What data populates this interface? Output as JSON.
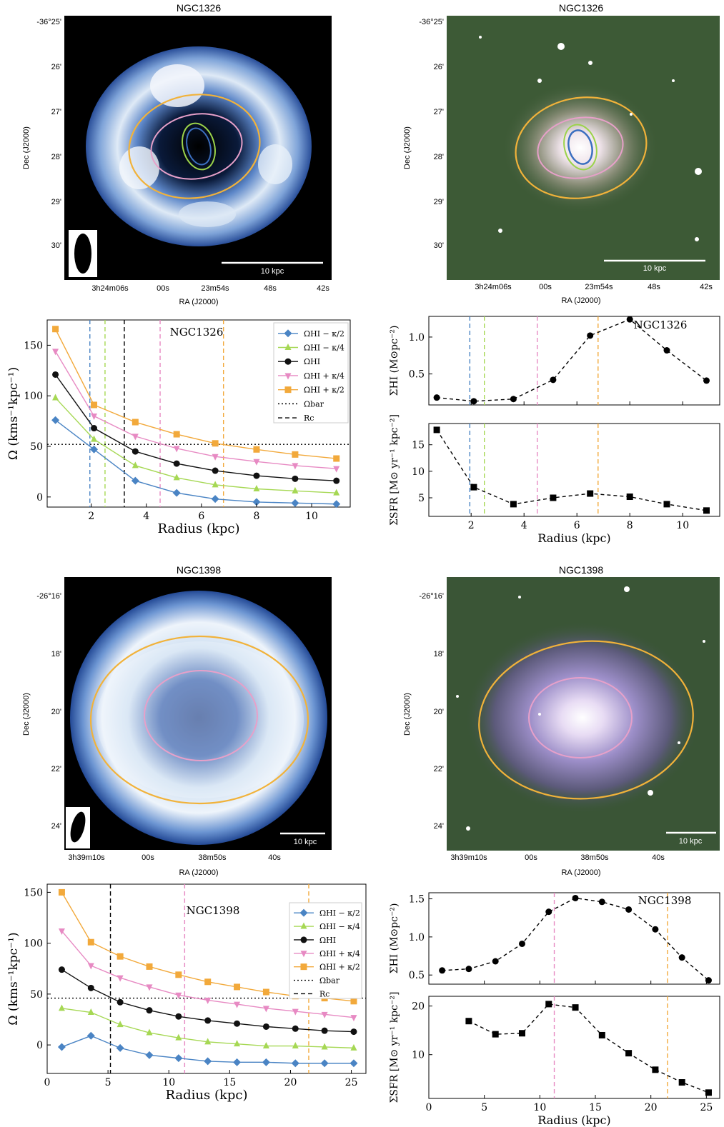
{
  "colors": {
    "kappa_minus_half": "#4a84c4",
    "kappa_minus_quarter": "#a6d854",
    "hi": "#111111",
    "kappa_plus_quarter": "#e78ac3",
    "kappa_plus_half": "#f2a93b",
    "ellipse_blue": "#3b6fc0",
    "ellipse_green": "#9bd34a",
    "ellipse_pink": "#e7a0c9",
    "ellipse_orange": "#f1b23a"
  },
  "images": [
    {
      "title": "NGC1326",
      "kind": "hi-map",
      "dec_labels": [
        "-36°25'",
        "26'",
        "27'",
        "28'",
        "29'",
        "30'"
      ],
      "ra_labels": [
        "3h24m06s",
        "00s",
        "23m54s",
        "48s",
        "42s"
      ],
      "xlabel": "RA (J2000)",
      "ylabel": "Dec (J2000)",
      "scalebar": "10 kpc"
    },
    {
      "title": "NGC1326",
      "kind": "optical",
      "dec_labels": [
        "-36°25'",
        "26'",
        "27'",
        "28'",
        "29'",
        "30'"
      ],
      "ra_labels": [
        "3h24m06s",
        "00s",
        "23m54s",
        "48s",
        "42s"
      ],
      "xlabel": "RA (J2000)",
      "ylabel": "Dec (J2000)",
      "scalebar": "10 kpc"
    },
    {
      "title": "NGC1398",
      "kind": "hi-map",
      "dec_labels": [
        "-26°16'",
        "18'",
        "20'",
        "22'",
        "24'"
      ],
      "ra_labels": [
        "3h39m10s",
        "00s",
        "38m50s",
        "40s"
      ],
      "xlabel": "RA (J2000)",
      "ylabel": "Dec (J2000)",
      "scalebar": "10 kpc"
    },
    {
      "title": "NGC1398",
      "kind": "optical",
      "dec_labels": [
        "-26°16'",
        "18'",
        "20'",
        "22'",
        "24'"
      ],
      "ra_labels": [
        "3h39m10s",
        "00s",
        "38m50s",
        "40s"
      ],
      "xlabel": "RA (J2000)",
      "ylabel": "Dec (J2000)",
      "scalebar": "10 kpc"
    }
  ],
  "chart_data": [
    {
      "type": "line",
      "galaxy": "NGC1326",
      "label": "NGC1326",
      "xlabel": "Radius (kpc)",
      "ylabel": "Ω (kms⁻¹kpc⁻¹)",
      "xlim": [
        0.4,
        11.4
      ],
      "ylim": [
        -10,
        175
      ],
      "xticks": [
        2,
        4,
        6,
        8,
        10
      ],
      "yticks": [
        0,
        50,
        100,
        150
      ],
      "x": [
        0.7,
        2.1,
        3.6,
        5.1,
        6.5,
        8.0,
        9.4,
        10.9
      ],
      "series": [
        {
          "name": "ΩHI − κ/2",
          "values": [
            76,
            47,
            16,
            4,
            -2,
            -5,
            -6,
            -7
          ]
        },
        {
          "name": "ΩHI − κ/4",
          "values": [
            98,
            57,
            31,
            19,
            12,
            8,
            6,
            4
          ]
        },
        {
          "name": "ΩHI",
          "values": [
            121,
            68,
            45,
            33,
            26,
            21,
            18,
            16
          ]
        },
        {
          "name": "ΩHI + κ/4",
          "values": [
            144,
            80,
            60,
            48,
            40,
            35,
            31,
            28
          ]
        },
        {
          "name": "ΩHI + κ/2",
          "values": [
            166,
            91,
            74,
            62,
            53,
            47,
            42,
            38
          ]
        }
      ],
      "omega_bar": 52,
      "vlines": [
        1.95,
        2.5,
        4.5,
        6.8
      ],
      "rc": 3.2,
      "legend_extra": [
        "Ωbar",
        "Rc"
      ],
      "legend": "top-right"
    },
    {
      "type": "line",
      "galaxy": "NGC1326",
      "label": "NGC1326",
      "ylabel": "ΣHI (M⊙pc⁻²)",
      "xlim": [
        0.4,
        11.4
      ],
      "ylim": [
        0.08,
        1.28
      ],
      "yticks": [
        0.5,
        1.0
      ],
      "x": [
        0.7,
        2.1,
        3.6,
        5.1,
        6.5,
        8.0,
        9.4,
        10.9
      ],
      "values": [
        0.18,
        0.13,
        0.16,
        0.42,
        1.02,
        1.24,
        0.82,
        0.41
      ],
      "vlines": [
        1.95,
        2.5,
        4.5,
        6.8
      ]
    },
    {
      "type": "line",
      "galaxy": "NGC1326",
      "xlabel": "Radius (kpc)",
      "ylabel": "ΣSFR [M⊙ yr⁻¹ kpc⁻²]",
      "xlim": [
        0.4,
        11.4
      ],
      "ylim": [
        1.5,
        19
      ],
      "xticks": [
        2,
        4,
        6,
        8,
        10
      ],
      "yticks": [
        5,
        10,
        15
      ],
      "x": [
        0.7,
        2.1,
        3.6,
        5.1,
        6.5,
        8.0,
        9.4,
        10.9
      ],
      "values": [
        17.8,
        7.0,
        3.8,
        5.0,
        5.8,
        5.2,
        3.8,
        2.6
      ],
      "vlines": [
        1.95,
        2.5,
        4.5,
        6.8
      ]
    },
    {
      "type": "line",
      "galaxy": "NGC1398",
      "label": "NGC1398",
      "xlabel": "Radius (kpc)",
      "ylabel": "Ω (kms⁻¹kpc⁻¹)",
      "xlim": [
        0,
        26.2
      ],
      "ylim": [
        -28,
        158
      ],
      "xticks": [
        0,
        5,
        10,
        15,
        20,
        25
      ],
      "yticks": [
        0,
        50,
        100,
        150
      ],
      "x": [
        1.2,
        3.6,
        6.0,
        8.4,
        10.8,
        13.2,
        15.6,
        18.0,
        20.4,
        22.8,
        25.2
      ],
      "series": [
        {
          "name": "ΩHI − κ/2",
          "values": [
            -2,
            9,
            -3,
            -10,
            -13,
            -16,
            -17,
            -17,
            -18,
            -18,
            -18
          ]
        },
        {
          "name": "ΩHI − κ/4",
          "values": [
            36,
            32,
            20,
            12,
            7,
            3,
            1,
            -1,
            -1,
            -2,
            -3
          ]
        },
        {
          "name": "ΩHI",
          "values": [
            74,
            56,
            42,
            34,
            28,
            24,
            21,
            18,
            16,
            14,
            13
          ]
        },
        {
          "name": "ΩHI + κ/4",
          "values": [
            112,
            78,
            66,
            57,
            49,
            44,
            40,
            36,
            33,
            30,
            27
          ]
        },
        {
          "name": "ΩHI + κ/2",
          "values": [
            150,
            101,
            87,
            77,
            69,
            62,
            57,
            52,
            48,
            46,
            43
          ]
        }
      ],
      "omega_bar": 46,
      "vlines": [
        11.3,
        21.5
      ],
      "rc": 5.2,
      "legend_extra": [
        "Ωbar",
        "Rc"
      ],
      "legend": "top-right"
    },
    {
      "type": "line",
      "galaxy": "NGC1398",
      "label": "NGC1398",
      "ylabel": "ΣHI (M⊙pc⁻²)",
      "xlim": [
        0,
        26.2
      ],
      "ylim": [
        0.38,
        1.58
      ],
      "yticks": [
        0.5,
        1.0,
        1.5
      ],
      "x": [
        1.2,
        3.6,
        6.0,
        8.4,
        10.8,
        13.2,
        15.6,
        18.0,
        20.4,
        22.8,
        25.2
      ],
      "values": [
        0.56,
        0.58,
        0.68,
        0.91,
        1.33,
        1.51,
        1.46,
        1.36,
        1.1,
        0.73,
        0.43
      ],
      "vlines": [
        11.3,
        21.5
      ]
    },
    {
      "type": "line",
      "galaxy": "NGC1398",
      "xlabel": "Radius (kpc)",
      "ylabel": "ΣSFR [M⊙ yr⁻¹ kpc⁻²]",
      "xlim": [
        0,
        26.2
      ],
      "ylim": [
        1,
        22
      ],
      "xticks": [
        0,
        5,
        10,
        15,
        20,
        25
      ],
      "yticks": [
        10,
        20
      ],
      "x": [
        3.6,
        6.0,
        8.4,
        10.8,
        13.2,
        15.6,
        18.0,
        20.4,
        22.8,
        25.2
      ],
      "values": [
        16.9,
        14.2,
        14.4,
        20.4,
        19.7,
        14.0,
        10.3,
        6.9,
        4.3,
        2.2
      ],
      "vlines": [
        11.3,
        21.5
      ]
    }
  ]
}
